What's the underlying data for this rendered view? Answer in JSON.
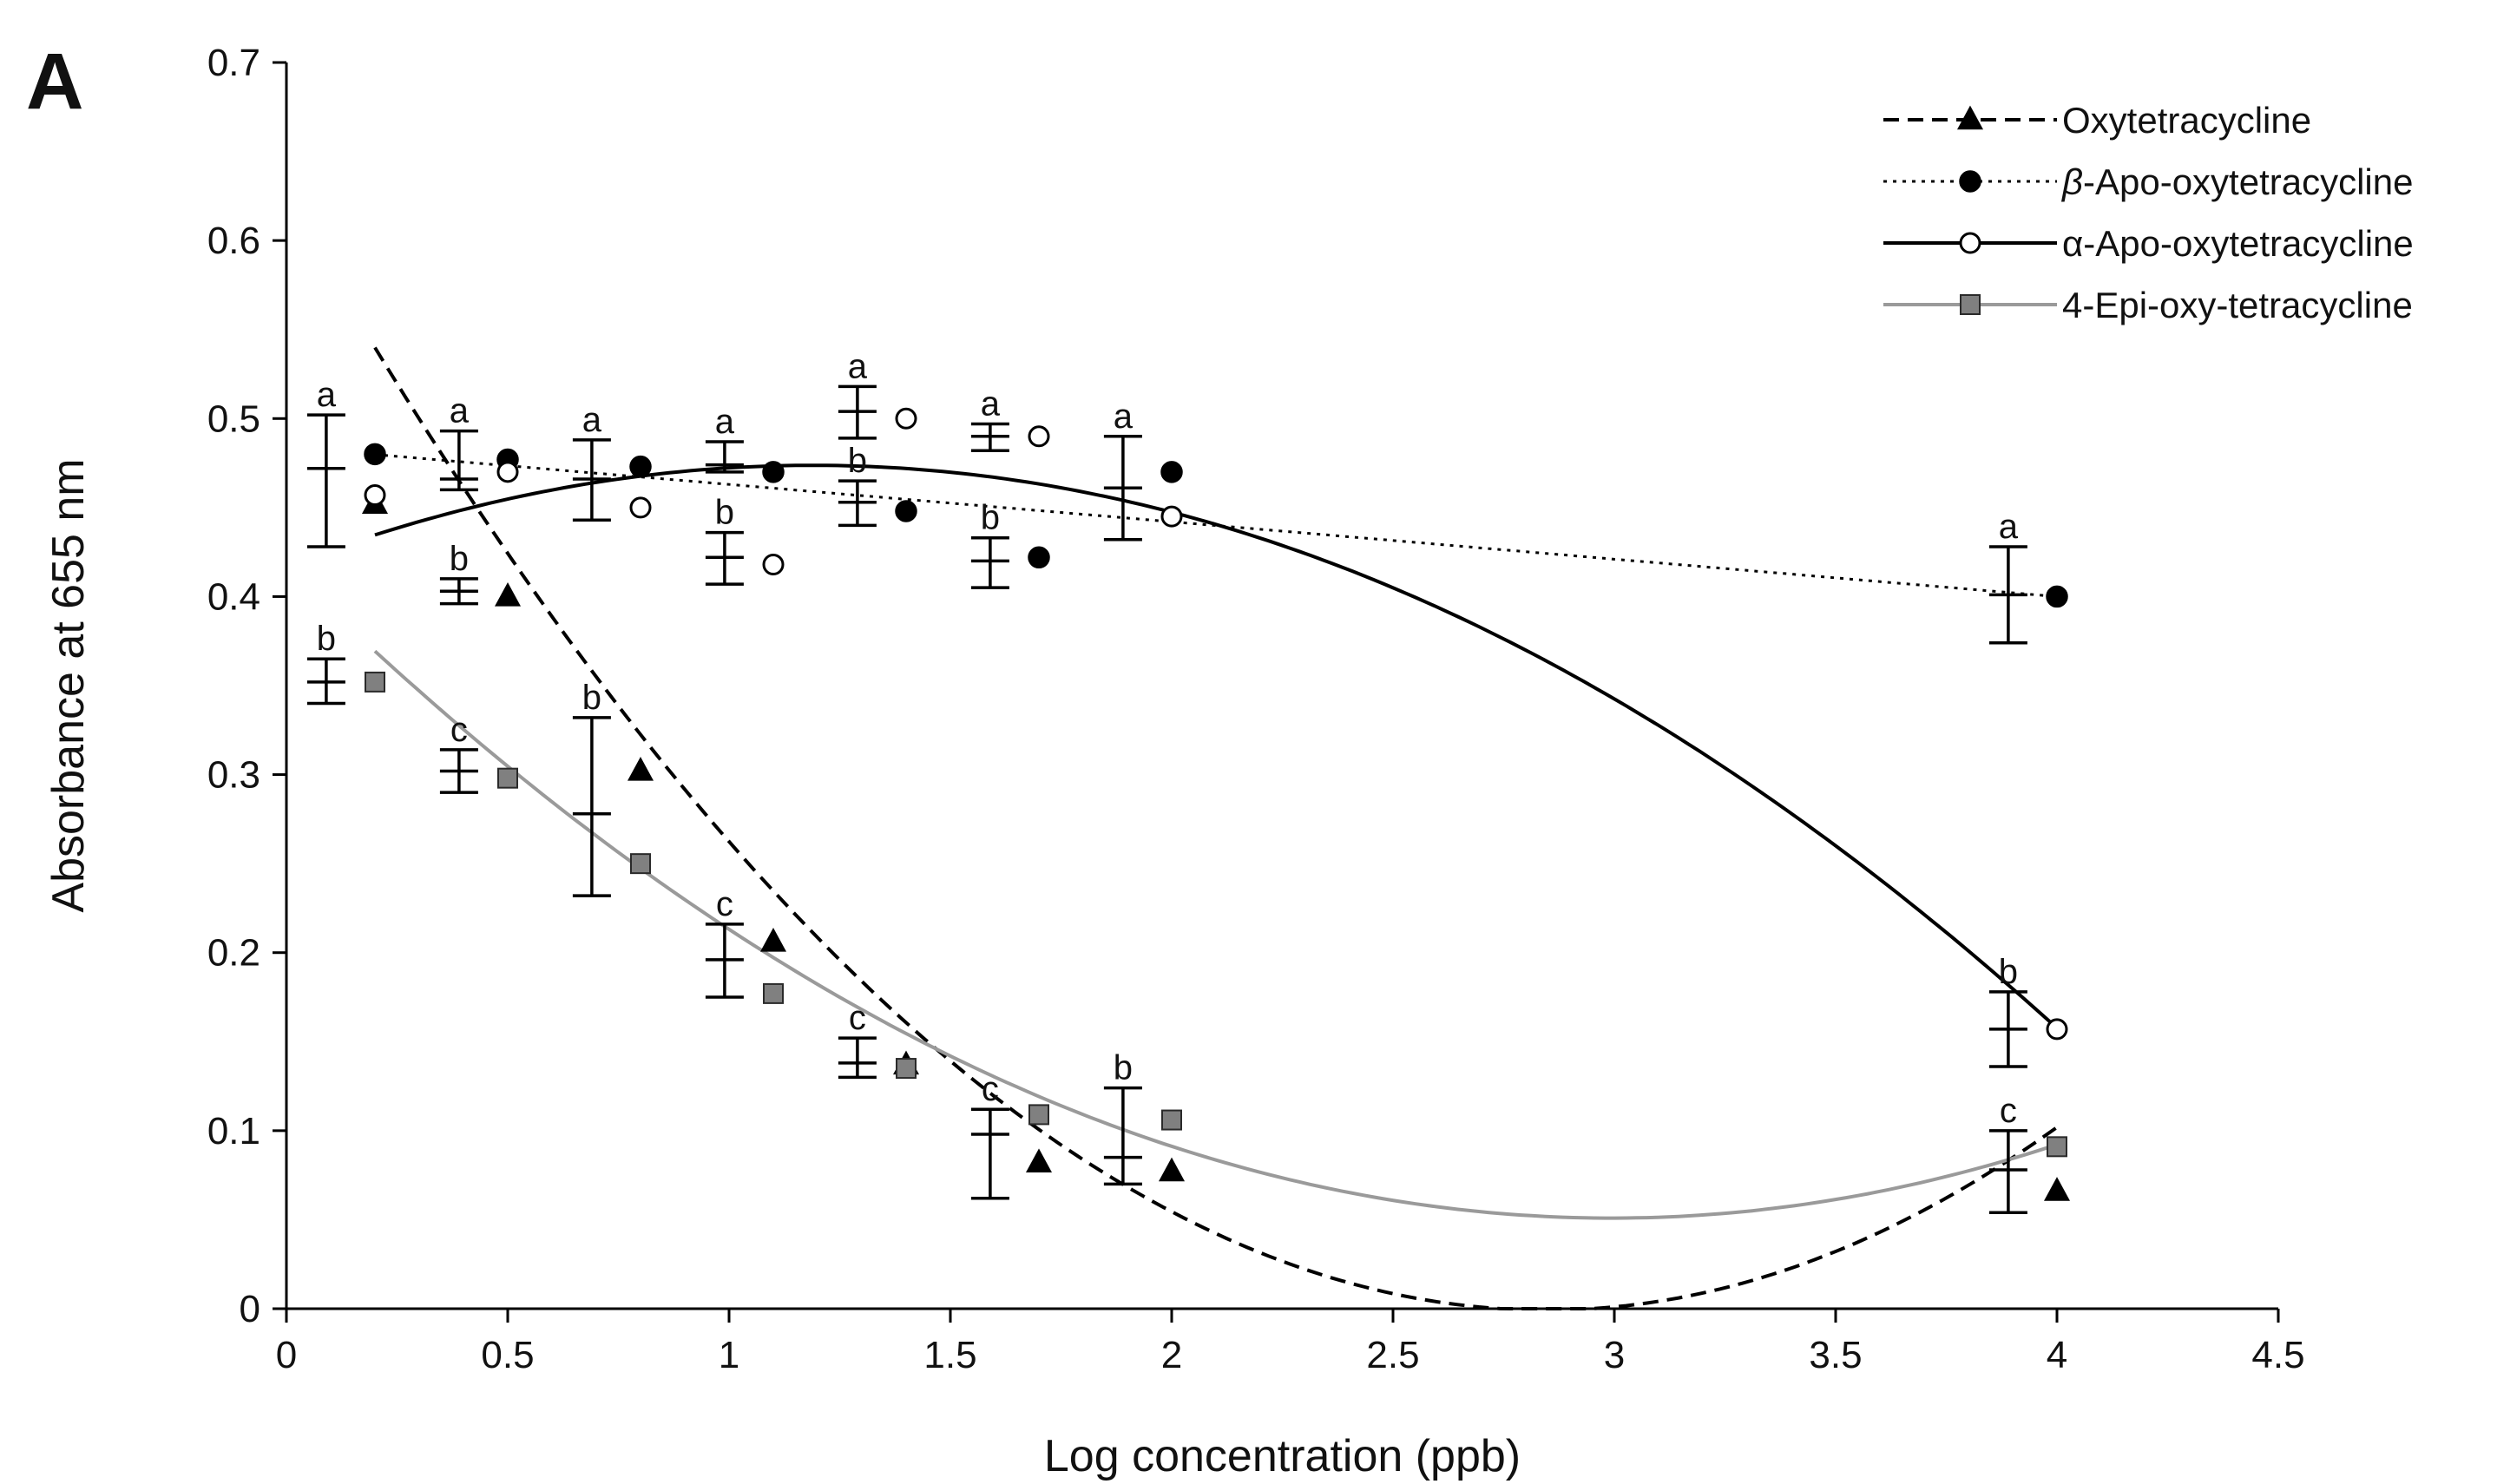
{
  "panel_label": "A",
  "chart_data": {
    "type": "scatter",
    "title": "",
    "xlabel": "Log concentration (ppb)",
    "ylabel": "Absorbance at 655 nm",
    "xlim": [
      0,
      4.5
    ],
    "ylim": [
      0,
      0.7
    ],
    "x_ticks": [
      0,
      0.5,
      1,
      1.5,
      2,
      2.5,
      3,
      3.5,
      4,
      4.5
    ],
    "x_tick_labels": [
      "0",
      "0.5",
      "1",
      "1.5",
      "2",
      "2.5",
      "3",
      "3.5",
      "4",
      "4.5"
    ],
    "y_ticks": [
      0,
      0.1,
      0.2,
      0.3,
      0.4,
      0.5,
      0.6,
      0.7
    ],
    "y_tick_labels": [
      "0",
      "0.1",
      "0.2",
      "0.3",
      "0.4",
      "0.5",
      "0.6",
      "0.7"
    ],
    "grid": false,
    "legend_position": "top-right",
    "series": [
      {
        "name": "Oxytetracycline",
        "name_prefix": "",
        "name_suffix": "Oxytetracycline",
        "marker": "triangle",
        "line_style": "dashed",
        "color": "#000000",
        "marker_fill": "#000000",
        "points": [
          {
            "x": 0.2,
            "y": 0.452
          },
          {
            "x": 0.5,
            "y": 0.4
          },
          {
            "x": 0.8,
            "y": 0.302
          },
          {
            "x": 1.1,
            "y": 0.206
          },
          {
            "x": 1.4,
            "y": 0.137
          },
          {
            "x": 1.7,
            "y": 0.082
          },
          {
            "x": 2.0,
            "y": 0.077
          },
          {
            "x": 4.0,
            "y": 0.066
          }
        ],
        "fit": "polynomial",
        "fit_range": [
          0.2,
          4.0
        ],
        "fit_coefficients": [
          0.6247,
          -0.4395,
          0.0772
        ]
      },
      {
        "name": "β-Apo-oxytetracycline",
        "name_prefix": "β",
        "name_suffix": "-Apo-oxytetracycline",
        "marker": "circle",
        "line_style": "dotted",
        "color": "#000000",
        "marker_fill": "#000000",
        "points": [
          {
            "x": 0.2,
            "y": 0.48
          },
          {
            "x": 0.5,
            "y": 0.477
          },
          {
            "x": 0.8,
            "y": 0.473
          },
          {
            "x": 1.1,
            "y": 0.47
          },
          {
            "x": 1.4,
            "y": 0.448
          },
          {
            "x": 1.7,
            "y": 0.422
          },
          {
            "x": 2.0,
            "y": 0.47
          },
          {
            "x": 4.0,
            "y": 0.4
          }
        ],
        "fit": "linear",
        "fit_range": [
          0.2,
          4.0
        ],
        "fit_coefficients": [
          0.484,
          -0.021
        ]
      },
      {
        "name": "α-Apo-oxytetracycline",
        "name_prefix": "",
        "name_suffix": "α-Apo-oxytetracycline",
        "marker": "circle-open",
        "line_style": "solid",
        "color": "#000000",
        "marker_fill": "#ffffff",
        "points": [
          {
            "x": 0.2,
            "y": 0.457
          },
          {
            "x": 0.5,
            "y": 0.47
          },
          {
            "x": 0.8,
            "y": 0.45
          },
          {
            "x": 1.1,
            "y": 0.418
          },
          {
            "x": 1.4,
            "y": 0.5
          },
          {
            "x": 1.7,
            "y": 0.49
          },
          {
            "x": 2.0,
            "y": 0.445
          },
          {
            "x": 4.0,
            "y": 0.157
          }
        ],
        "fit": "polynomial",
        "fit_range": [
          0.2,
          4.0
        ],
        "fit_coefficients": [
          0.4172,
          0.0951,
          -0.04
        ]
      },
      {
        "name": "4-Epi-oxy-tetracycline",
        "name_prefix": "",
        "name_suffix": "4-Epi-oxy-tetracycline",
        "marker": "square",
        "line_style": "solid",
        "color": "#9a9a9a",
        "marker_fill": "#808080",
        "points": [
          {
            "x": 0.2,
            "y": 0.352
          },
          {
            "x": 0.5,
            "y": 0.298
          },
          {
            "x": 0.8,
            "y": 0.25
          },
          {
            "x": 1.1,
            "y": 0.177
          },
          {
            "x": 1.4,
            "y": 0.135
          },
          {
            "x": 1.7,
            "y": 0.109
          },
          {
            "x": 2.0,
            "y": 0.106
          },
          {
            "x": 4.0,
            "y": 0.091
          }
        ],
        "fit": "polynomial",
        "fit_range": [
          0.2,
          4.0
        ],
        "fit_coefficients": [
          0.4166,
          -0.2443,
          0.0408
        ]
      }
    ],
    "error_bars": [
      {
        "x": 0.09,
        "center": 0.472,
        "low": 0.428,
        "high": 0.502,
        "letter": "a"
      },
      {
        "x": 0.09,
        "center": 0.352,
        "low": 0.34,
        "high": 0.365,
        "letter": "b"
      },
      {
        "x": 0.39,
        "center": 0.466,
        "low": 0.46,
        "high": 0.493,
        "letter": "a"
      },
      {
        "x": 0.39,
        "center": 0.403,
        "low": 0.396,
        "high": 0.41,
        "letter": "b"
      },
      {
        "x": 0.39,
        "center": 0.302,
        "low": 0.29,
        "high": 0.314,
        "letter": "c"
      },
      {
        "x": 0.69,
        "center": 0.466,
        "low": 0.443,
        "high": 0.488,
        "letter": "a"
      },
      {
        "x": 0.69,
        "center": 0.278,
        "low": 0.232,
        "high": 0.332,
        "letter": "b"
      },
      {
        "x": 0.99,
        "center": 0.474,
        "low": 0.47,
        "high": 0.487,
        "letter": "a"
      },
      {
        "x": 0.99,
        "center": 0.422,
        "low": 0.407,
        "high": 0.436,
        "letter": "b"
      },
      {
        "x": 0.99,
        "center": 0.196,
        "low": 0.175,
        "high": 0.216,
        "letter": "c"
      },
      {
        "x": 1.29,
        "center": 0.504,
        "low": 0.489,
        "high": 0.518,
        "letter": "a"
      },
      {
        "x": 1.29,
        "center": 0.453,
        "low": 0.44,
        "high": 0.465,
        "letter": "b"
      },
      {
        "x": 1.29,
        "center": 0.138,
        "low": 0.13,
        "high": 0.152,
        "letter": "c"
      },
      {
        "x": 1.59,
        "center": 0.49,
        "low": 0.482,
        "high": 0.497,
        "letter": "a"
      },
      {
        "x": 1.59,
        "center": 0.42,
        "low": 0.405,
        "high": 0.433,
        "letter": "b"
      },
      {
        "x": 1.59,
        "center": 0.098,
        "low": 0.062,
        "high": 0.112,
        "letter": "c"
      },
      {
        "x": 1.89,
        "center": 0.461,
        "low": 0.432,
        "high": 0.49,
        "letter": "a"
      },
      {
        "x": 1.89,
        "center": 0.085,
        "low": 0.07,
        "high": 0.124,
        "letter": "b"
      },
      {
        "x": 3.89,
        "center": 0.401,
        "low": 0.374,
        "high": 0.428,
        "letter": "a"
      },
      {
        "x": 3.89,
        "center": 0.157,
        "low": 0.136,
        "high": 0.178,
        "letter": "b"
      },
      {
        "x": 3.89,
        "center": 0.078,
        "low": 0.054,
        "high": 0.1,
        "letter": "c"
      }
    ]
  }
}
